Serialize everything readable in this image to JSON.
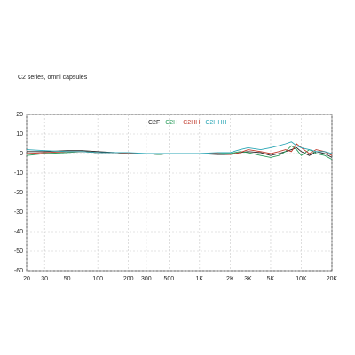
{
  "chart_data": {
    "type": "line",
    "title": "C2 series, omni capsules",
    "x": [
      20,
      30,
      50,
      70,
      100,
      150,
      200,
      300,
      400,
      500,
      700,
      1000,
      1500,
      2000,
      2500,
      3000,
      4000,
      5000,
      6000,
      7000,
      8000,
      9000,
      10000,
      12000,
      14000,
      17000,
      20000
    ],
    "series": [
      {
        "name": "C2F",
        "color": "#222222",
        "values": [
          1,
          1,
          1.5,
          1.5,
          1,
          0.5,
          0,
          0,
          -0.5,
          0,
          0,
          0,
          -0.5,
          -0.5,
          0.5,
          1,
          0.5,
          -1,
          0,
          1,
          2,
          3,
          1,
          -1,
          1,
          0,
          -2
        ]
      },
      {
        "name": "C2H",
        "color": "#2a9d5c",
        "values": [
          -1,
          0,
          0.5,
          1,
          0.5,
          0.5,
          0,
          0,
          -0.5,
          0,
          0,
          0,
          0,
          0,
          1,
          0.5,
          -1,
          -2,
          -1,
          1,
          4,
          2,
          -1,
          2,
          0,
          -1,
          -3
        ]
      },
      {
        "name": "C2HH",
        "color": "#c0392b",
        "values": [
          0,
          0.5,
          1,
          1,
          0.5,
          0.5,
          0,
          0,
          0,
          0,
          0,
          0,
          0,
          -0.5,
          0.5,
          2,
          1,
          0,
          1,
          2,
          1,
          5,
          3,
          0,
          2,
          1,
          -1
        ]
      },
      {
        "name": "C2HHH",
        "color": "#2aa6b5",
        "values": [
          2,
          1.5,
          1,
          1,
          0.5,
          0.5,
          0.5,
          0,
          0,
          0,
          0,
          0,
          0.5,
          0.5,
          2,
          3,
          2,
          3,
          4,
          5,
          6,
          4,
          3,
          2,
          1,
          1,
          0
        ]
      }
    ],
    "xscale": "log",
    "xlim": [
      20,
      20000
    ],
    "xticks": [
      20,
      30,
      50,
      100,
      200,
      300,
      500,
      {
        "value": 1000,
        "label": "1K"
      },
      {
        "value": 2000,
        "label": "2K"
      },
      {
        "value": 3000,
        "label": "3K"
      },
      {
        "value": 5000,
        "label": "5K"
      },
      {
        "value": 10000,
        "label": "10K"
      },
      {
        "value": 20000,
        "label": "20K"
      }
    ],
    "ylim": [
      -60,
      20
    ],
    "yticks": [
      -60,
      -50,
      -40,
      -30,
      -20,
      -10,
      0,
      10,
      20
    ],
    "grid": true,
    "legend": "top"
  }
}
